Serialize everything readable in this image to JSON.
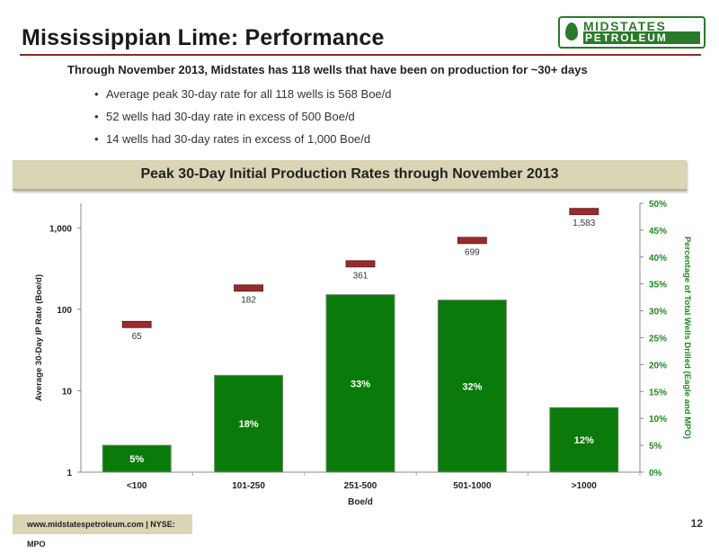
{
  "page": {
    "title": "Mississippian Lime: Performance",
    "logo_top": "MIDSTATES",
    "logo_bottom": "PETROLEUM",
    "headline": "Through November 2013, Midstates has 118 wells that have been on production for ~30+ days",
    "bullets": [
      "Average peak 30-day rate for all 118 wells is 568 Boe/d",
      "52 wells had 30-day rate in excess of 500 Boe/d",
      "14 wells had 30-day rates in excess of 1,000 Boe/d"
    ],
    "banner": "Peak 30-Day Initial Production Rates through November 2013",
    "footer": "www.midstatespetroleum.com | NYSE: MPO",
    "page_number": "12"
  },
  "colors": {
    "bar": "#0a7a0a",
    "marker": "#9b2b2b",
    "accent_rule": "#8c2a2a",
    "banner": "#d9d5b5",
    "right_axis_text": "#1d8a1d"
  },
  "chart_data": {
    "type": "bar",
    "xlabel": "Boe/d",
    "ylabel_left": "Average 30-Day IP Rate (Boe/d)",
    "ylabel_right": "Percentage of Total Wells Drilled (Eagle and MPO)",
    "categories": [
      "<100",
      "101-250",
      "251-500",
      "501-1000",
      ">1000"
    ],
    "series": [
      {
        "axis": "right",
        "kind": "bar",
        "values": [
          5,
          18,
          33,
          32,
          12
        ],
        "labels": [
          "5%",
          "18%",
          "33%",
          "32%",
          "12%"
        ]
      },
      {
        "axis": "left",
        "kind": "marker",
        "scale": "log",
        "values": [
          65,
          182,
          361,
          699,
          1583
        ],
        "labels": [
          "65",
          "182",
          "361",
          "699",
          "1,583"
        ]
      }
    ],
    "left_axis": {
      "scale": "log",
      "range": [
        1,
        2000
      ],
      "ticks": [
        1,
        10,
        100,
        1000
      ],
      "tick_labels": [
        "1",
        "10",
        "100",
        "1,000"
      ]
    },
    "right_axis": {
      "range": [
        0,
        50
      ],
      "ticks": [
        0,
        5,
        10,
        15,
        20,
        25,
        30,
        35,
        40,
        45,
        50
      ],
      "tick_labels": [
        "0%",
        "5%",
        "10%",
        "15%",
        "20%",
        "25%",
        "30%",
        "35%",
        "40%",
        "45%",
        "50%"
      ]
    },
    "grid": false,
    "legend": "none"
  }
}
